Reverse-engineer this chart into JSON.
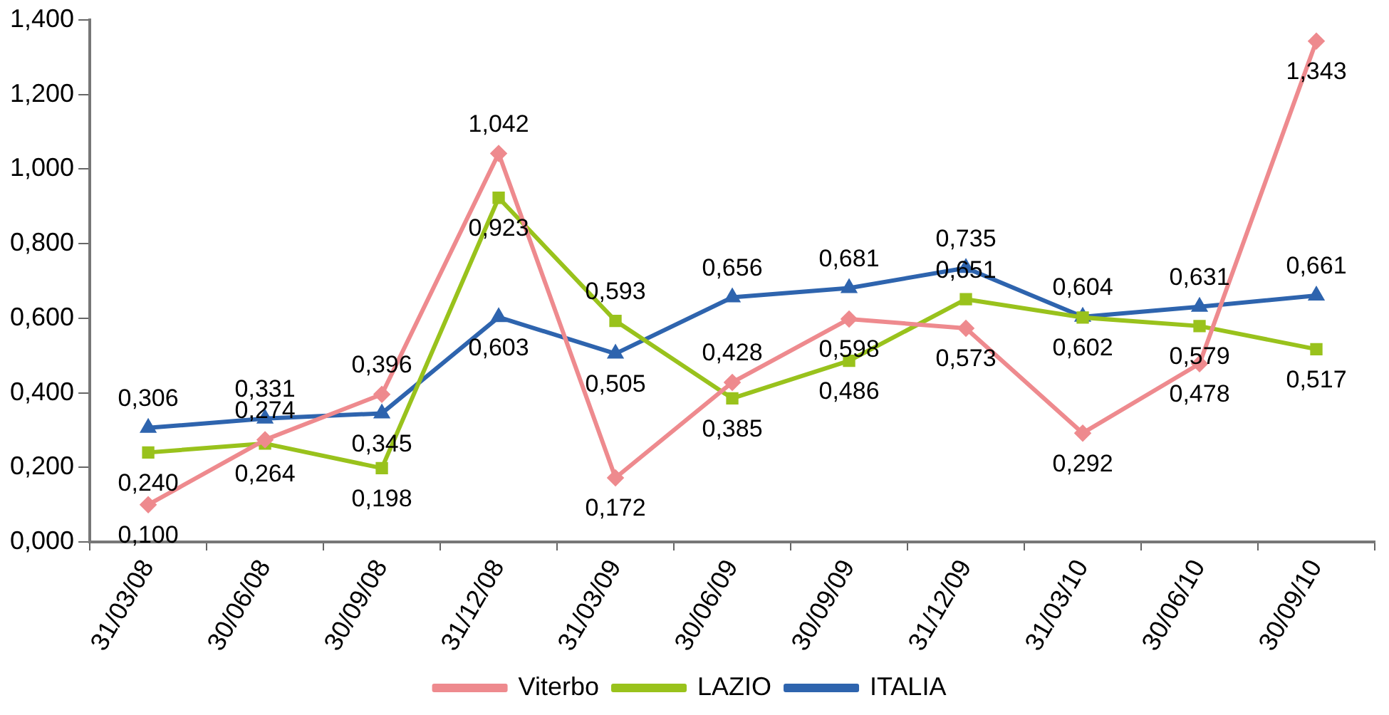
{
  "chart_data": {
    "type": "line",
    "categories": [
      "31/03/08",
      "30/06/08",
      "30/09/08",
      "31/12/08",
      "31/03/09",
      "30/06/09",
      "30/09/09",
      "31/12/09",
      "31/03/10",
      "30/06/10",
      "30/09/10"
    ],
    "series": [
      {
        "name": "Viterbo",
        "color": "#ee8a8e",
        "marker": "diamond",
        "values": [
          0.1,
          0.274,
          0.396,
          1.042,
          0.172,
          0.428,
          0.598,
          0.573,
          0.292,
          0.478,
          1.343
        ],
        "value_labels": [
          "0,100",
          "0,274",
          "0,396",
          "1,042",
          "0,172",
          "0,428",
          "0,598",
          "0,573",
          "0,292",
          "0,478",
          "1,343"
        ]
      },
      {
        "name": "LAZIO",
        "color": "#99c21c",
        "marker": "square",
        "values": [
          0.24,
          0.264,
          0.198,
          0.923,
          0.593,
          0.385,
          0.486,
          0.651,
          0.602,
          0.579,
          0.517
        ],
        "value_labels": [
          "0,240",
          "0,264",
          "0,198",
          "0,923",
          "0,593",
          "0,385",
          "0,486",
          "0,651",
          "0,602",
          "0,579",
          "0,517"
        ]
      },
      {
        "name": "ITALIA",
        "color": "#2e64ae",
        "marker": "triangle",
        "values": [
          0.306,
          0.331,
          0.345,
          0.603,
          0.505,
          0.656,
          0.681,
          0.735,
          0.604,
          0.631,
          0.661
        ],
        "value_labels": [
          "0,306",
          "0,331",
          "0,345",
          "0,603",
          "0,505",
          "0,656",
          "0,681",
          "0,735",
          "0,604",
          "0,631",
          "0,661"
        ]
      }
    ],
    "ylim": [
      0,
      1.4
    ],
    "yticks": [
      {
        "value": 0,
        "label": "0,000"
      },
      {
        "value": 0.2,
        "label": "0,200"
      },
      {
        "value": 0.4,
        "label": "0,400"
      },
      {
        "value": 0.6,
        "label": "0,600"
      },
      {
        "value": 0.8,
        "label": "0,800"
      },
      {
        "value": 1,
        "label": "1,000"
      },
      {
        "value": 1.2,
        "label": "1,200"
      },
      {
        "value": 1.4,
        "label": "1,400"
      }
    ],
    "grid": false,
    "legend": "bottom",
    "line_style": "solid"
  }
}
